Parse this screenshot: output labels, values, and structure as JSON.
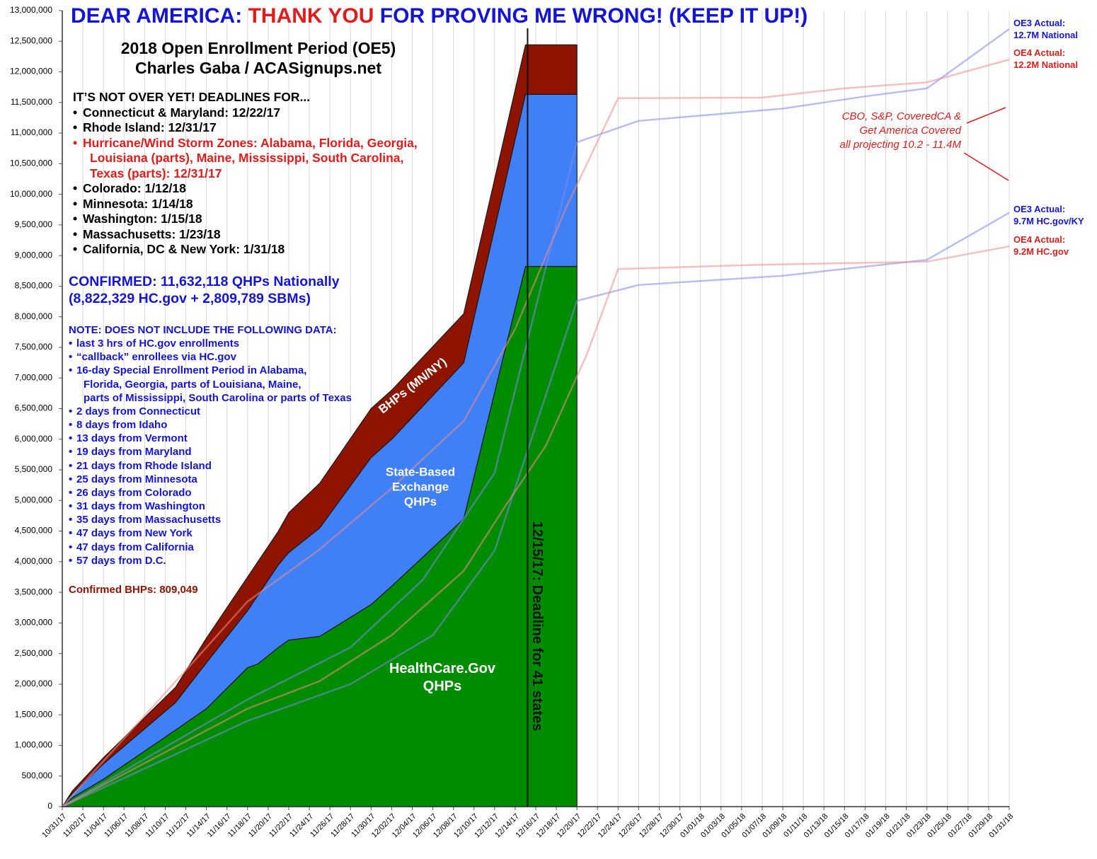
{
  "chart_data": {
    "type": "area",
    "title": [
      {
        "text": "DEAR AMERICA:",
        "color": "#1414d8"
      },
      {
        "text": "THANK YOU",
        "color": "#e41b1b"
      },
      {
        "text": "FOR PROVING ME WRONG! (KEEP IT UP!)",
        "color": "#1414d8"
      }
    ],
    "subtitle": [
      "2018 Open Enrollment Period (OE5)",
      "Charles Gaba / ACASignups.net"
    ],
    "deadlines": {
      "heading": "IT’S NOT OVER YET! DEADLINES FOR...",
      "items": [
        {
          "lines": [
            "Connecticut & Maryland: 12/22/17"
          ],
          "color": "#000000"
        },
        {
          "lines": [
            "Rhode Island: 12/31/17"
          ],
          "color": "#000000"
        },
        {
          "lines": [
            "Hurricane/Wind Storm Zones: Alabama, Florida, Georgia,",
            "Louisiana (parts), Maine, Mississippi, South Carolina,",
            "Texas (parts): 12/31/17"
          ],
          "color": "#e41b1b"
        },
        {
          "lines": [
            "Colorado: 1/12/18"
          ],
          "color": "#000000"
        },
        {
          "lines": [
            "Minnesota: 1/14/18"
          ],
          "color": "#000000"
        },
        {
          "lines": [
            "Washington: 1/15/18"
          ],
          "color": "#000000"
        },
        {
          "lines": [
            "Massachusetts: 1/23/18"
          ],
          "color": "#000000"
        },
        {
          "lines": [
            "California, DC & New York: 1/31/18"
          ],
          "color": "#000000"
        }
      ]
    },
    "confirmed": [
      "CONFIRMED: 11,632,118 QHPs Nationally",
      "(8,822,329 HC.gov + 2,809,789 SBMs)"
    ],
    "note": {
      "heading": "NOTE: DOES NOT INCLUDE THE FOLLOWING DATA:",
      "items": [
        [
          "last 3 hrs of HC.gov enrollments"
        ],
        [
          "“callback” enrollees via HC.gov"
        ],
        [
          "16-day Special Enrollment Period in Alabama,",
          "Florida, Georgia, parts of Louisiana, Maine,",
          "parts of Mississippi, South Carolina or parts of Texas"
        ],
        [
          "2 days from Connecticut"
        ],
        [
          "8 days from Idaho"
        ],
        [
          "13 days from Vermont"
        ],
        [
          "19 days from Maryland"
        ],
        [
          "21 days from Rhode Island"
        ],
        [
          "25 days from Minnesota"
        ],
        [
          "26 days from Colorado"
        ],
        [
          "31 days from Washington"
        ],
        [
          "35 days from Massachusetts"
        ],
        [
          "47 days from New York"
        ],
        [
          "47 days from California"
        ],
        [
          "57 days from D.C."
        ]
      ]
    },
    "bhp_note": "Confirmed BHPs: 809,049",
    "x": [
      "10/31/17",
      "11/01/17",
      "11/04/17",
      "11/11/17",
      "11/14/17",
      "11/18/17",
      "11/19/17",
      "11/21/17",
      "11/22/17",
      "11/25/17",
      "11/30/17",
      "12/02/17",
      "12/09/17",
      "12/15/17",
      "12/20/17"
    ],
    "series": [
      {
        "name": "HealthCare.Gov QHPs",
        "color": "#008c00",
        "values": [
          0,
          150000,
          450000,
          1250000,
          1600000,
          2270000,
          2330000,
          2600000,
          2720000,
          2780000,
          3300000,
          3600000,
          4700000,
          8822329,
          8822329
        ]
      },
      {
        "name": "State-Based Exchange QHPs",
        "color": "#3f80f7",
        "values": [
          0,
          70000,
          250000,
          450000,
          750000,
          930000,
          1120000,
          1350000,
          1430000,
          1770000,
          2400000,
          2400000,
          2550000,
          2809789,
          2809789
        ]
      },
      {
        "name": "BHPs (MN/NY)",
        "color": "#8e1400",
        "values": [
          0,
          40000,
          100000,
          250000,
          400000,
          550000,
          550000,
          550000,
          650000,
          730000,
          800000,
          800000,
          800000,
          809049,
          809049
        ]
      }
    ],
    "lines": [
      {
        "label": [
          "OE3 Actual:",
          "12.7M National"
        ],
        "color": "#7f87ee",
        "x": [
          "10/31/17",
          "11/18/17",
          "11/28/17",
          "12/05/17",
          "12/12/17",
          "12/20/17",
          "12/26/17",
          "01/09/18",
          "01/17/18",
          "01/23/18",
          "01/31/18"
        ],
        "values": [
          0,
          1750000,
          2600000,
          3700000,
          5450000,
          10850000,
          11200000,
          11400000,
          11600000,
          11730000,
          12700000
        ]
      },
      {
        "label": [
          "OE4 Actual:",
          "12.2M National"
        ],
        "color": "#f08a8a",
        "x": [
          "10/31/17",
          "11/14/17",
          "11/18/17",
          "11/25/17",
          "12/02/17",
          "12/09/17",
          "12/14/17",
          "12/19/17",
          "12/24/17",
          "01/07/18",
          "01/15/18",
          "01/23/18",
          "01/31/18"
        ],
        "values": [
          0,
          2600000,
          3350000,
          4200000,
          5200000,
          6300000,
          7800000,
          9800000,
          11570000,
          11580000,
          11730000,
          11830000,
          12200000
        ]
      },
      {
        "label": [
          "OE3 Actual:",
          "9.7M HC.gov/KY"
        ],
        "color": "#7f87ee",
        "x": [
          "10/31/17",
          "11/18/17",
          "11/28/17",
          "12/06/17",
          "12/12/17",
          "12/20/17",
          "12/26/17",
          "01/09/18",
          "01/23/18",
          "01/31/18"
        ],
        "values": [
          0,
          1400000,
          2000000,
          2800000,
          4180000,
          8260000,
          8520000,
          8670000,
          8930000,
          9700000
        ]
      },
      {
        "label": [
          "OE4 Actual:",
          "9.2M HC.gov"
        ],
        "color": "#f08a8a",
        "x": [
          "10/31/17",
          "11/18/17",
          "11/25/17",
          "12/02/17",
          "12/09/17",
          "12/13/17",
          "12/17/17",
          "12/21/17",
          "12/24/17",
          "01/07/18",
          "01/23/18",
          "01/31/18"
        ],
        "values": [
          0,
          1600000,
          2050000,
          2800000,
          3850000,
          4900000,
          5900000,
          7400000,
          8780000,
          8850000,
          8900000,
          9150000
        ]
      }
    ],
    "projection": [
      "CBO, S&P, CoveredCA &",
      "Get America Covered",
      "all projecting 10.2 - 11.4M"
    ],
    "deadline_marker": {
      "x": "12/15/17",
      "label": "12/15/17: Deadline for 41 states"
    },
    "xlim": [
      "10/31/17",
      "01/31/18"
    ],
    "xticks": [
      "10/31/17",
      "11/02/17",
      "11/04/17",
      "11/06/17",
      "11/08/17",
      "11/10/17",
      "11/12/17",
      "11/14/17",
      "11/16/17",
      "11/18/17",
      "11/20/17",
      "11/22/17",
      "11/24/17",
      "11/26/17",
      "11/28/17",
      "11/30/17",
      "12/02/17",
      "12/04/17",
      "12/06/17",
      "12/08/17",
      "12/10/17",
      "12/12/17",
      "12/14/17",
      "12/16/17",
      "12/18/17",
      "12/20/17",
      "12/22/17",
      "12/24/17",
      "12/26/17",
      "12/28/17",
      "12/30/17",
      "01/01/18",
      "01/03/18",
      "01/05/18",
      "01/07/18",
      "01/09/18",
      "01/11/18",
      "01/13/18",
      "01/15/18",
      "01/17/18",
      "01/19/18",
      "01/21/18",
      "01/23/18",
      "01/25/18",
      "01/27/18",
      "01/29/18",
      "01/31/18"
    ],
    "ylim": [
      0,
      13000000
    ],
    "yticks": [
      0,
      {
        "value": 500000,
        "label": "500,000"
      },
      {
        "value": 1000000,
        "label": "1,000,000"
      },
      {
        "value": 1500000,
        "label": "1,500,000"
      },
      {
        "value": 2000000,
        "label": "2,000,000"
      },
      {
        "value": 2500000,
        "label": "2,500,000"
      },
      {
        "value": 3000000,
        "label": "3,000,000"
      },
      {
        "value": 3500000,
        "label": "3,500,000"
      },
      {
        "value": 4000000,
        "label": "4,000,000"
      },
      {
        "value": 4500000,
        "label": "4,500,000"
      },
      {
        "value": 5000000,
        "label": "5,000,000"
      },
      {
        "value": 5500000,
        "label": "5,500,000"
      },
      {
        "value": 6000000,
        "label": "6,000,000"
      },
      {
        "value": 6500000,
        "label": "6,500,000"
      },
      {
        "value": 7000000,
        "label": "7,000,000"
      },
      {
        "value": 7500000,
        "label": "7,500,000"
      },
      {
        "value": 8000000,
        "label": "8,000,000"
      },
      {
        "value": 8500000,
        "label": "8,500,000"
      },
      {
        "value": 9000000,
        "label": "9,000,000"
      },
      {
        "value": 9500000,
        "label": "9,500,000"
      },
      {
        "value": 10000000,
        "label": "10,000,000"
      },
      {
        "value": 10500000,
        "label": "10,500,000"
      },
      {
        "value": 11000000,
        "label": "11,000,000"
      },
      {
        "value": 11500000,
        "label": "11,500,000"
      },
      {
        "value": 12000000,
        "label": "12,000,000"
      },
      {
        "value": 12500000,
        "label": "12,500,000"
      },
      {
        "value": 13000000,
        "label": "13,000,000"
      }
    ],
    "grid": true
  }
}
